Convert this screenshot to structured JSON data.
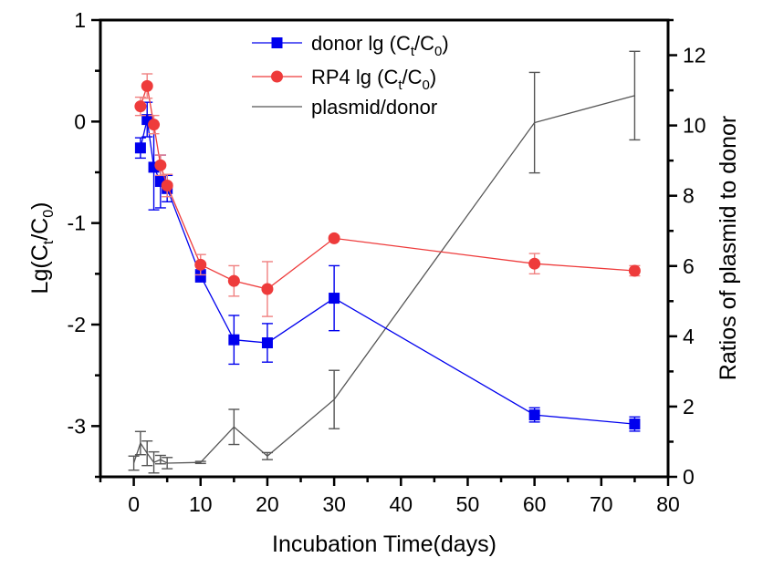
{
  "chart_data": {
    "type": "line",
    "title": "",
    "xlabel": "Incubation Time(days)",
    "ylabel_left": {
      "base": "Lg(C",
      "sub1": "t",
      "mid": "/C",
      "sub2": "0",
      "end": ")"
    },
    "ylabel_right": "Ratios of plasmid to donor",
    "xlim": [
      -5,
      80
    ],
    "ylim_left": [
      -3.5,
      1
    ],
    "ylim_right": [
      0,
      13
    ],
    "x_ticks": [
      0,
      10,
      20,
      30,
      40,
      50,
      60,
      70,
      80
    ],
    "x_minor_ticks": [
      -5,
      5,
      15,
      25,
      35,
      45,
      55,
      65,
      75
    ],
    "y_left_ticks": [
      -3,
      -2,
      -1,
      0,
      1
    ],
    "y_left_minor_ticks": [
      -3.5,
      -2.5,
      -1.5,
      -0.5,
      0.5
    ],
    "y_right_ticks": [
      0,
      2,
      4,
      6,
      8,
      10,
      12
    ],
    "y_right_minor_ticks": [
      1,
      3,
      5,
      7,
      9,
      11,
      13
    ],
    "grid": false,
    "legend_position": "top-center",
    "series": [
      {
        "name": "donor lg (Ct/C0)",
        "legend": {
          "base": "donor lg (C",
          "sub1": "t",
          "mid": "/C",
          "sub2": "0",
          "end": ")"
        },
        "axis": "left",
        "color": "#0000ee",
        "marker": "square",
        "x": [
          1,
          2,
          3,
          4,
          5,
          10,
          15,
          20,
          30,
          60,
          75
        ],
        "y": [
          -0.26,
          0.02,
          -0.45,
          -0.59,
          -0.66,
          -1.52,
          -2.15,
          -2.18,
          -1.74,
          -2.89,
          -2.98
        ],
        "err": [
          0.1,
          0.17,
          0.42,
          0.26,
          0.13,
          0.06,
          0.24,
          0.19,
          0.32,
          0.07,
          0.07
        ]
      },
      {
        "name": "RP4 lg (Ct/C0)",
        "legend": {
          "base": "RP4 lg (C",
          "sub1": "t",
          "mid": "/C",
          "sub2": "0",
          "end": ")"
        },
        "axis": "left",
        "color": "#ee3b3b",
        "marker": "circle",
        "x": [
          1,
          2,
          3,
          4,
          5,
          10,
          15,
          20,
          30,
          60,
          75
        ],
        "y": [
          0.15,
          0.35,
          -0.03,
          -0.43,
          -0.63,
          -1.41,
          -1.57,
          -1.65,
          -1.15,
          -1.4,
          -1.47
        ],
        "err": [
          0.09,
          0.12,
          0.09,
          0.1,
          0.11,
          0.1,
          0.15,
          0.27,
          0.02,
          0.1,
          0.05
        ]
      },
      {
        "name": "plasmid/donor",
        "legend": {
          "base": "plasmid/donor",
          "sub1": "",
          "mid": "",
          "sub2": "",
          "end": ""
        },
        "axis": "right",
        "color": "#555555",
        "marker": "none",
        "x": [
          0,
          1,
          2,
          3,
          4,
          5,
          10,
          15,
          20,
          30,
          60,
          75
        ],
        "y": [
          0.39,
          0.96,
          0.67,
          0.41,
          0.49,
          0.39,
          0.41,
          1.42,
          0.59,
          2.2,
          10.08,
          10.85
        ],
        "err": [
          0.2,
          0.33,
          0.35,
          0.3,
          0.12,
          0.16,
          0.03,
          0.5,
          0.1,
          0.83,
          1.43,
          1.26
        ]
      }
    ]
  }
}
